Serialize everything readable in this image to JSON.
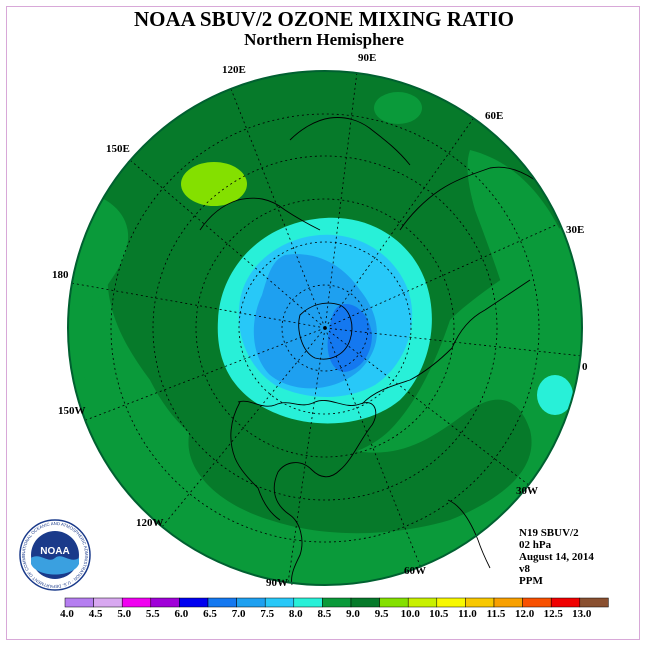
{
  "title": "NOAA SBUV/2 OZONE MIXING RATIO",
  "subtitle": "Northern Hemisphere",
  "longitude_labels": {
    "e90": "90E",
    "e120": "120E",
    "e60": "60E",
    "e150": "150E",
    "e30": "30E",
    "d180": "180",
    "d0": "0",
    "w150": "150W",
    "w30": "30W",
    "w120": "120W",
    "w60": "60W",
    "w90": "90W"
  },
  "info": {
    "satellite": "N19 SBUV/2",
    "level": "02 hPa",
    "date": "August 14, 2014",
    "version": "v8",
    "units": "PPM"
  },
  "logo": {
    "text": "NOAA",
    "ring_text": "NATIONAL OCEANIC AND ATMOSPHERIC ADMINISTRATION · U.S. DEPARTMENT OF COMMERCE"
  },
  "colorbar": {
    "labels": [
      "4.0",
      "4.5",
      "5.0",
      "5.5",
      "6.0",
      "6.5",
      "7.0",
      "7.5",
      "8.0",
      "8.5",
      "9.0",
      "9.5",
      "10.0",
      "10.5",
      "11.0",
      "11.5",
      "12.0",
      "12.5",
      "13.0"
    ],
    "colors": [
      "#b57ef0",
      "#d8a8f0",
      "#f000f0",
      "#a000d8",
      "#0000f0",
      "#1478f0",
      "#1ea0f0",
      "#28c8f8",
      "#28f0d8",
      "#0a9a3a",
      "#067a2a",
      "#84e000",
      "#c8f000",
      "#f8f800",
      "#f8c800",
      "#f8a000",
      "#f85000",
      "#f00000",
      "#8a5030"
    ]
  }
}
